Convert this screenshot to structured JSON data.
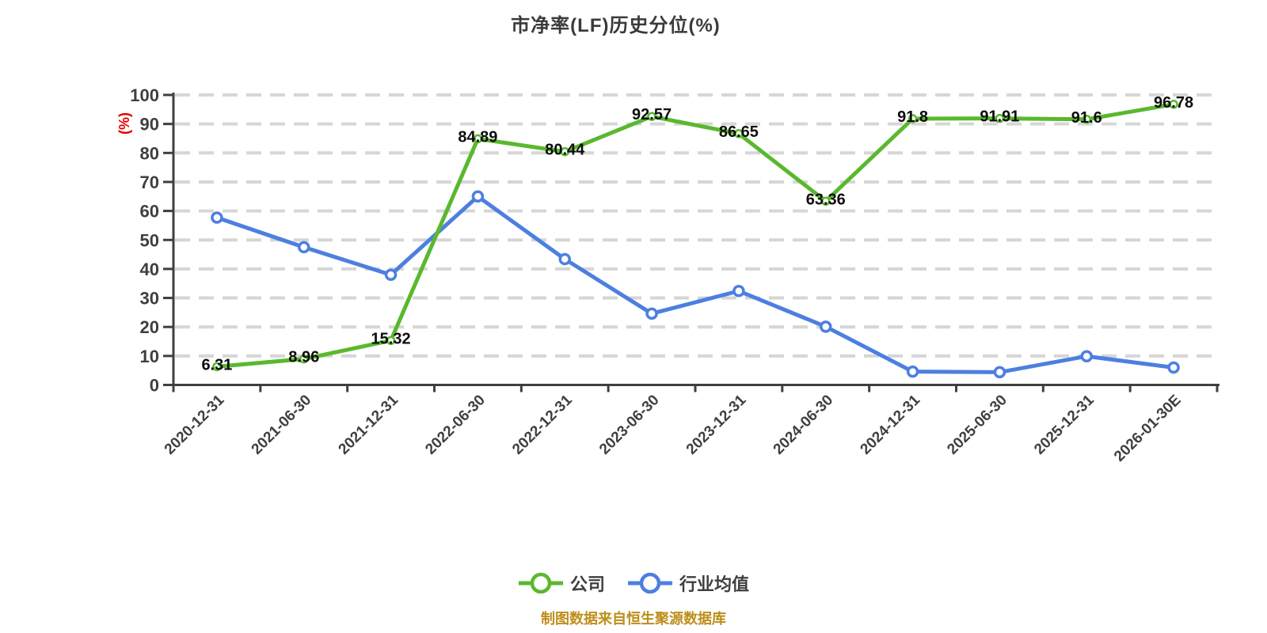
{
  "title": "市净率(LF)历史分位(%)",
  "footer_note": "制图数据来自恒生聚源数据库",
  "colors": {
    "company_green": "#5AB82E",
    "industry_blue": "#4D7FE0",
    "axis_gray": "#3f3f3f",
    "gridline_gray": "#d6d6d6",
    "unit_red": "#e60000",
    "footer_gold": "#bd8e1a",
    "value_label_black": "#0d0d0d"
  },
  "legend": [
    {
      "label": "公司",
      "color": "#5AB82E"
    },
    {
      "label": "行业均值",
      "color": "#4D7FE0"
    }
  ],
  "chart_data": {
    "type": "line",
    "title": "市净率(LF)历史分位(%)",
    "ylabel": "(%)",
    "xlabel": "",
    "ylim": [
      0,
      100
    ],
    "yticks": [
      0,
      10,
      20,
      30,
      40,
      50,
      60,
      70,
      80,
      90,
      100
    ],
    "grid": "horizontal-dashed",
    "legend_position": "bottom",
    "categories": [
      "2020-12-31",
      "2021-06-30",
      "2021-12-31",
      "2022-06-30",
      "2022-12-31",
      "2023-06-30",
      "2023-12-31",
      "2024-06-30",
      "2024-12-31",
      "2025-06-30",
      "2025-12-31",
      "2026-01-30E"
    ],
    "series": [
      {
        "name": "公司",
        "color": "#5AB82E",
        "values": [
          6.31,
          8.96,
          15.32,
          84.89,
          80.44,
          92.57,
          86.65,
          63.36,
          91.8,
          91.91,
          91.6,
          96.78
        ],
        "point_labels": [
          "6.31",
          "8.96",
          "15.32",
          "84.89",
          "80.44",
          "92.57",
          "86.65",
          "63.36",
          "91.8",
          "91.91",
          "91.6",
          "96.78"
        ]
      },
      {
        "name": "行业均值",
        "color": "#4D7FE0",
        "values": [
          57.7,
          47.5,
          38.0,
          65.0,
          43.4,
          24.6,
          32.4,
          20.1,
          4.6,
          4.4,
          9.9,
          6.0
        ],
        "point_labels": null
      }
    ]
  }
}
